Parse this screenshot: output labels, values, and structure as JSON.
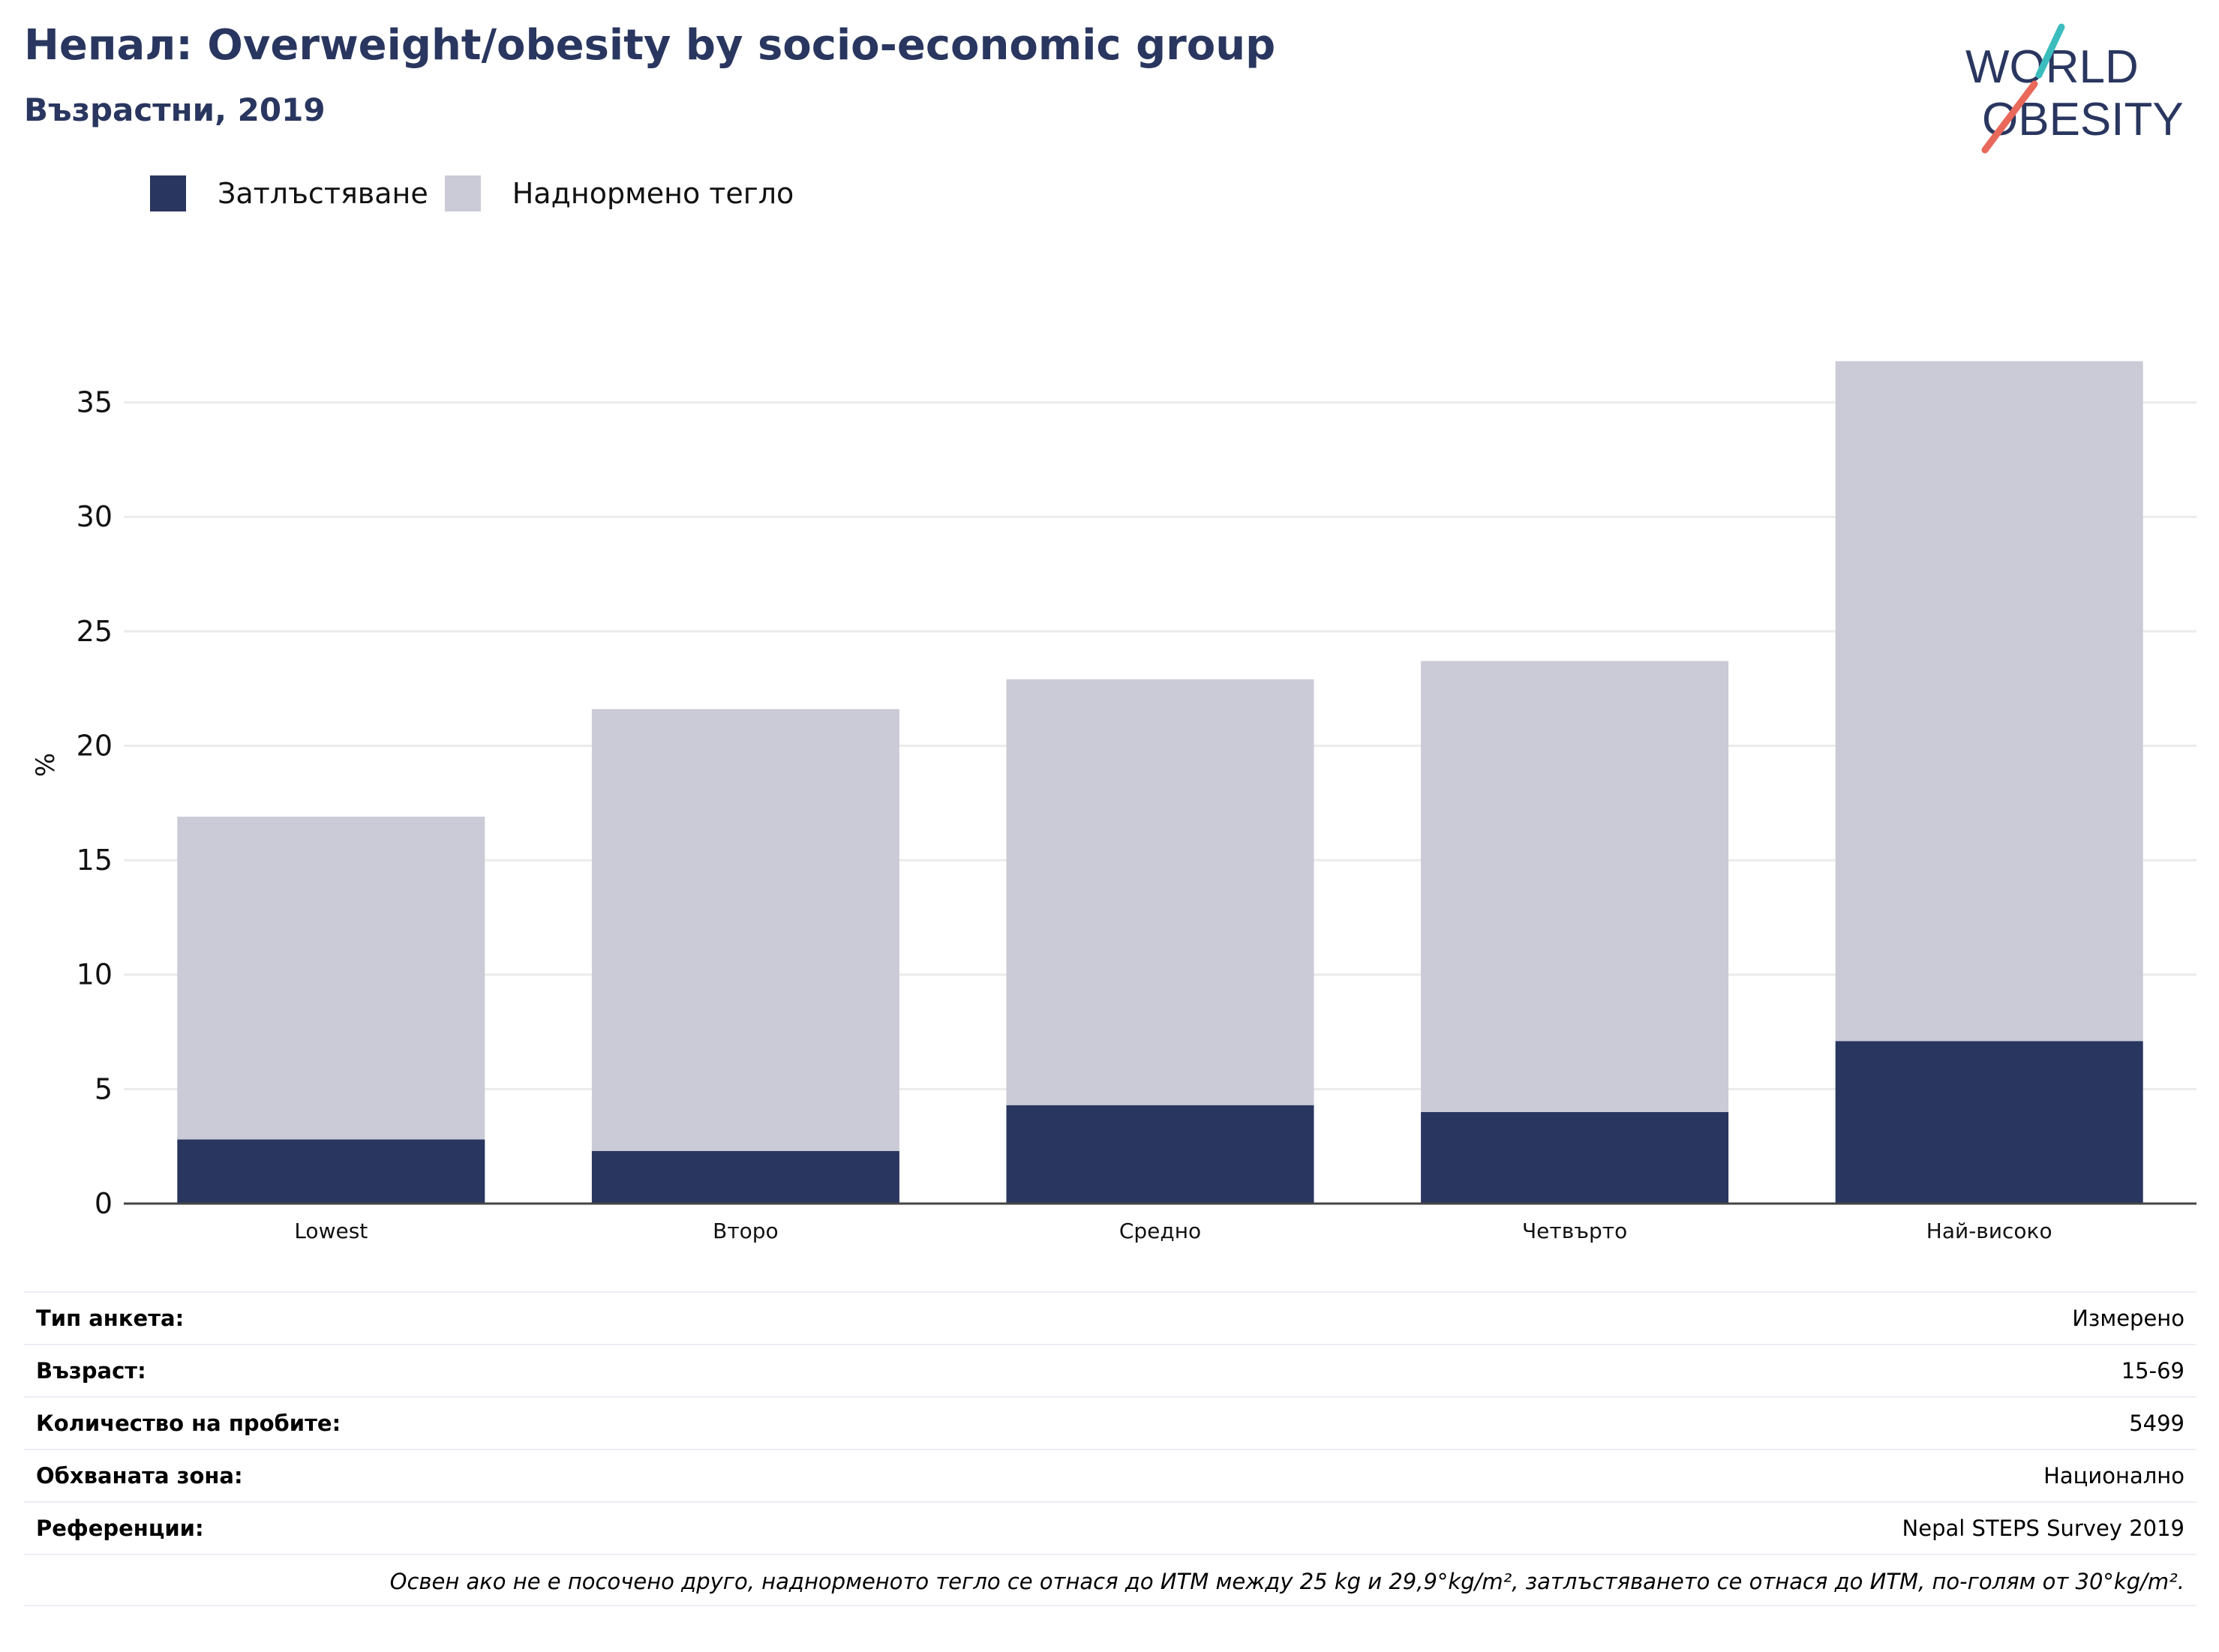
{
  "header": {
    "title": "Непал: Overweight/obesity by socio-economic group",
    "subtitle": "Възрастни, 2019"
  },
  "logo": {
    "line1": "WORLD",
    "line2": "OBESITY",
    "colors": {
      "text": "#29365f",
      "slash_top": "#3bbdbe",
      "slash_bottom": "#e8685a"
    }
  },
  "legend": [
    {
      "label": "Затлъстяване",
      "color": "#29365f"
    },
    {
      "label": "Наднормено тегло",
      "color": "#cacbd6"
    }
  ],
  "chart_data": {
    "type": "bar",
    "stacked": true,
    "categories": [
      "Lowest",
      "Второ",
      "Средно",
      "Четвърто",
      "Най-високо"
    ],
    "series": [
      {
        "name": "Затлъстяване",
        "color": "#29365f",
        "values": [
          2.8,
          2.3,
          4.3,
          4.0,
          7.1
        ]
      },
      {
        "name": "Наднормено тегло",
        "color": "#cacbd6",
        "values": [
          14.1,
          19.3,
          18.6,
          19.7,
          29.7
        ]
      }
    ],
    "ylabel": "%",
    "xlabel": "",
    "ylim": [
      0,
      38
    ],
    "yticks": [
      0,
      5,
      10,
      15,
      20,
      25,
      30,
      35
    ],
    "grid": true,
    "legend_position": "top-left"
  },
  "info": {
    "rows": [
      {
        "label": "Тип анкета:",
        "value": "Измерено"
      },
      {
        "label": "Възраст:",
        "value": "15-69"
      },
      {
        "label": "Количество на пробите:",
        "value": "5499"
      },
      {
        "label": "Обхваната зона:",
        "value": "Национално"
      },
      {
        "label": "Референции:",
        "value": "Nepal STEPS Survey 2019"
      }
    ],
    "note": "Освен ако не е посочено друго, наднорменото тегло се отнася до ИТМ между 25 kg и 29,9°kg/m², затлъстяването се отнася до ИТМ, по-голям от 30°kg/m²."
  }
}
